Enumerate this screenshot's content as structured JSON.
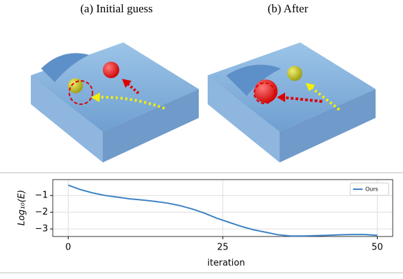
{
  "captions": [
    "(a) Initial guess",
    "(b) After"
  ],
  "chart_data": {
    "type": "line",
    "x": [
      0,
      2,
      4,
      6,
      8,
      10,
      12,
      14,
      16,
      18,
      20,
      22,
      24,
      26,
      28,
      30,
      32,
      34,
      36,
      38,
      40,
      42,
      44,
      46,
      48,
      50
    ],
    "series": [
      {
        "name": "Ours",
        "color": "#3b82c4",
        "values": [
          -0.38,
          -0.65,
          -0.85,
          -1.0,
          -1.1,
          -1.2,
          -1.27,
          -1.35,
          -1.45,
          -1.6,
          -1.8,
          -2.05,
          -2.35,
          -2.6,
          -2.85,
          -3.05,
          -3.2,
          -3.35,
          -3.42,
          -3.42,
          -3.4,
          -3.38,
          -3.35,
          -3.33,
          -3.33,
          -3.38
        ]
      }
    ],
    "xlabel": "iteration",
    "ylabel": "Log₁₀(E)",
    "xlim": [
      -2.5,
      52.5
    ],
    "ylim": [
      -3.45,
      -0.05
    ],
    "xticks": [
      0,
      25,
      50
    ],
    "yticks": [
      {
        "value": -1,
        "label": "−1"
      },
      {
        "value": -2,
        "label": "−2"
      },
      {
        "value": -3,
        "label": "−3"
      }
    ],
    "grid": true,
    "legend": "upper right"
  }
}
